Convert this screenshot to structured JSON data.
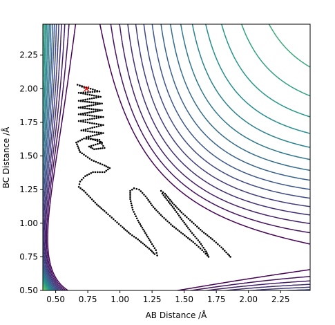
{
  "chart_data": {
    "type": "contour",
    "xlabel": "AB Distance /Å",
    "ylabel": "BC Distance /Å",
    "xlim": [
      0.4,
      2.48
    ],
    "ylim": [
      0.5,
      2.48
    ],
    "x_ticks": [
      "0.50",
      "0.75",
      "1.00",
      "1.25",
      "1.50",
      "1.75",
      "2.00",
      "2.25"
    ],
    "y_ticks": [
      "0.50",
      "0.75",
      "1.00",
      "1.25",
      "1.50",
      "1.75",
      "2.00",
      "2.25"
    ],
    "x_tick_values": [
      0.5,
      0.75,
      1.0,
      1.25,
      1.5,
      1.75,
      2.0,
      2.25
    ],
    "y_tick_values": [
      0.5,
      0.75,
      1.0,
      1.25,
      1.5,
      1.75,
      2.0,
      2.25
    ],
    "grid": false,
    "colormap": "viridis",
    "colormap_stops": [
      "#440154",
      "#3b528b",
      "#21918c",
      "#5ec962",
      "#fde725"
    ],
    "trajectory_color": "#000000",
    "start_marker": {
      "x": 0.74,
      "y": 2.0,
      "symbol": "x",
      "color": "#ff0000"
    },
    "trajectory": [
      [
        0.74,
        2.0
      ],
      [
        0.67,
        2.03
      ],
      [
        0.84,
        1.98
      ],
      [
        0.68,
        1.97
      ],
      [
        0.85,
        1.94
      ],
      [
        0.68,
        1.91
      ],
      [
        0.86,
        1.89
      ],
      [
        0.68,
        1.86
      ],
      [
        0.86,
        1.84
      ],
      [
        0.68,
        1.81
      ],
      [
        0.87,
        1.79
      ],
      [
        0.68,
        1.76
      ],
      [
        0.87,
        1.73
      ],
      [
        0.7,
        1.69
      ],
      [
        0.87,
        1.67
      ],
      [
        0.74,
        1.64
      ],
      [
        0.86,
        1.6
      ],
      [
        0.76,
        1.57
      ],
      [
        0.8,
        1.55
      ],
      [
        0.88,
        1.56
      ],
      [
        0.84,
        1.62
      ],
      [
        0.72,
        1.63
      ],
      [
        0.66,
        1.6
      ],
      [
        0.69,
        1.53
      ],
      [
        0.78,
        1.47
      ],
      [
        0.88,
        1.43
      ],
      [
        0.92,
        1.41
      ],
      [
        0.88,
        1.38
      ],
      [
        0.79,
        1.38
      ],
      [
        0.73,
        1.35
      ],
      [
        0.69,
        1.31
      ],
      [
        0.68,
        1.27
      ],
      [
        0.72,
        1.24
      ],
      [
        0.77,
        1.19
      ],
      [
        0.82,
        1.14
      ],
      [
        0.88,
        1.09
      ],
      [
        0.95,
        1.03
      ],
      [
        1.02,
        0.97
      ],
      [
        1.08,
        0.92
      ],
      [
        1.14,
        0.88
      ],
      [
        1.19,
        0.84
      ],
      [
        1.24,
        0.8
      ],
      [
        1.27,
        0.77
      ],
      [
        1.29,
        0.76
      ],
      [
        1.28,
        0.8
      ],
      [
        1.24,
        0.86
      ],
      [
        1.19,
        0.94
      ],
      [
        1.14,
        1.02
      ],
      [
        1.1,
        1.1
      ],
      [
        1.08,
        1.18
      ],
      [
        1.08,
        1.24
      ],
      [
        1.11,
        1.26
      ],
      [
        1.15,
        1.25
      ],
      [
        1.2,
        1.2
      ],
      [
        1.26,
        1.12
      ],
      [
        1.33,
        1.05
      ],
      [
        1.41,
        0.98
      ],
      [
        1.49,
        0.92
      ],
      [
        1.57,
        0.86
      ],
      [
        1.64,
        0.8
      ],
      [
        1.68,
        0.76
      ],
      [
        1.69,
        0.75
      ],
      [
        1.67,
        0.79
      ],
      [
        1.62,
        0.86
      ],
      [
        1.55,
        0.94
      ],
      [
        1.48,
        1.03
      ],
      [
        1.42,
        1.11
      ],
      [
        1.37,
        1.17
      ],
      [
        1.33,
        1.22
      ],
      [
        1.32,
        1.24
      ],
      [
        1.35,
        1.22
      ],
      [
        1.41,
        1.15
      ],
      [
        1.48,
        1.08
      ],
      [
        1.56,
        1.01
      ],
      [
        1.64,
        0.94
      ],
      [
        1.72,
        0.88
      ],
      [
        1.79,
        0.82
      ],
      [
        1.84,
        0.77
      ],
      [
        1.87,
        0.74
      ]
    ]
  }
}
